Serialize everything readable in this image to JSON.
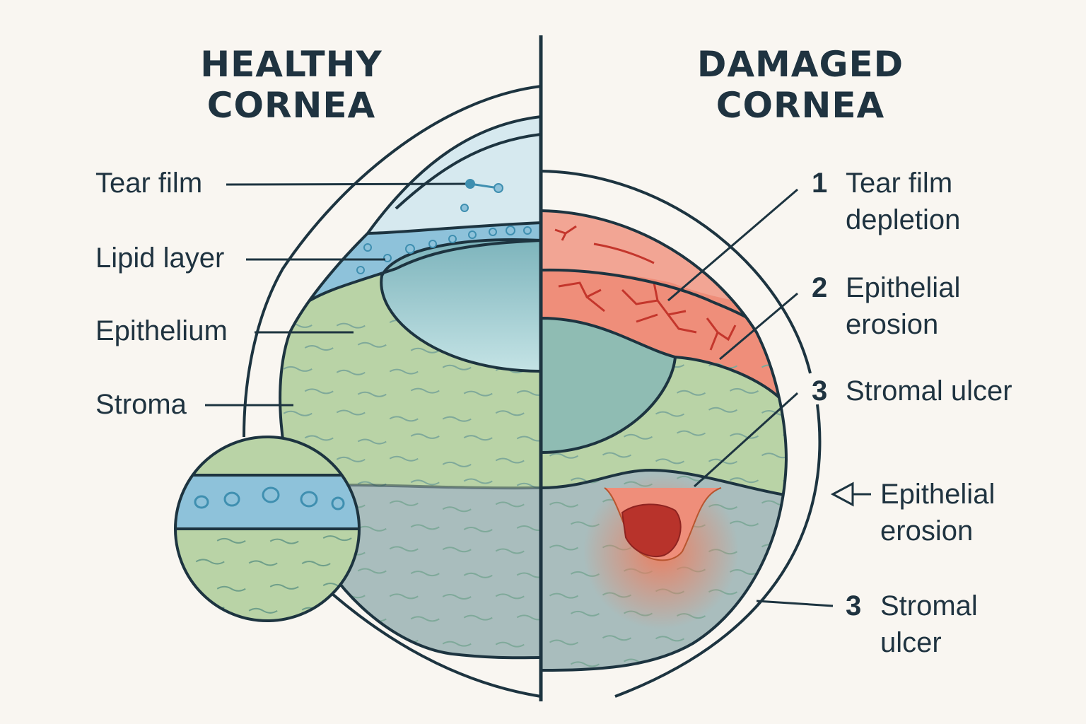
{
  "left": {
    "title_line1": "HEALTHY",
    "title_line2": "CORNEA",
    "labels": [
      "Tear film",
      "Lipid layer",
      "Epithelium",
      "Stroma"
    ]
  },
  "right": {
    "title_line1": "DAMAGED",
    "title_line2": "CORNEA",
    "callouts": [
      {
        "number": "1",
        "line1": "Tear film",
        "line2": "depletion"
      },
      {
        "number": "2",
        "line1": "Epithelial",
        "line2": "erosion"
      },
      {
        "number": "3",
        "line1": "Stromal ulcer",
        "line2": ""
      },
      {
        "number": "",
        "line1": "Epithelial",
        "line2": "erosion",
        "icon": "open-arrow-left-icon"
      },
      {
        "number": "3",
        "line1": "Stromal",
        "line2": "ulcer"
      }
    ]
  },
  "colors": {
    "ink": "#1d3440",
    "tear_film": "#d6e9ef",
    "lipid": "#8ec2da",
    "epithelium_green": "#b9d3a6",
    "stroma_gray": "#a9bdbd",
    "damage_red": "#ef8e7a",
    "ulcer": "#b8332b"
  }
}
